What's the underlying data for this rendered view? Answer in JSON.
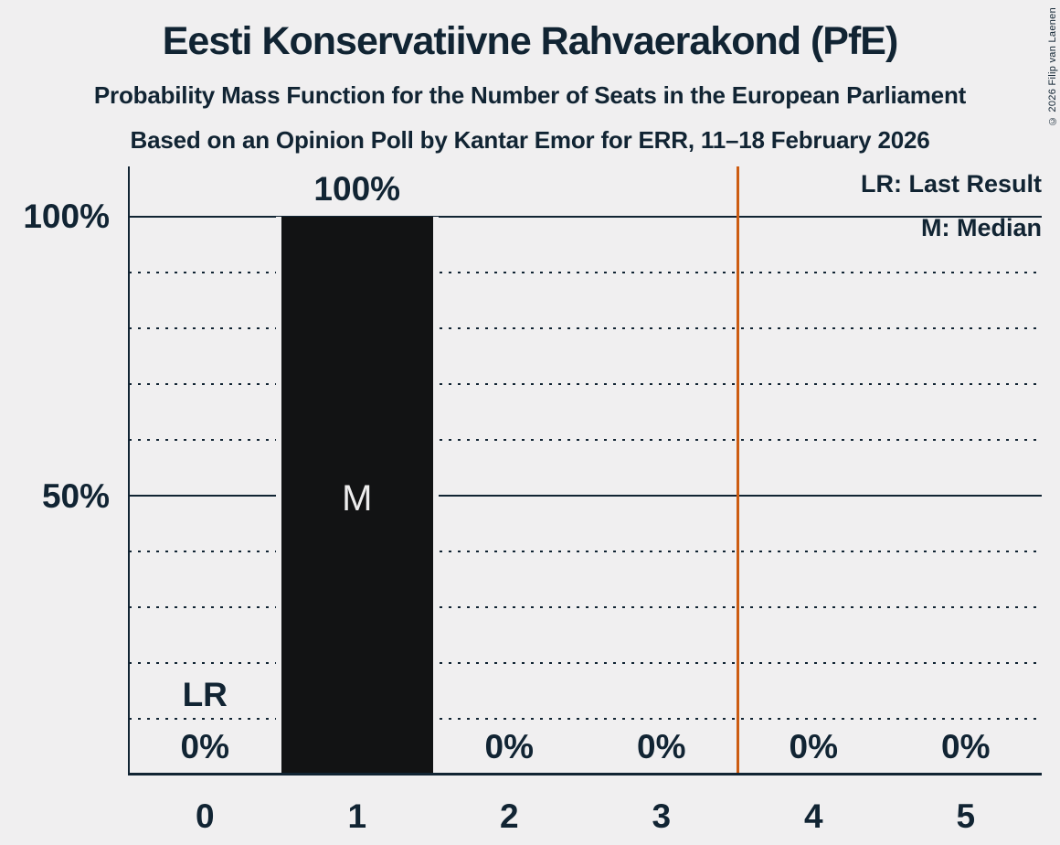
{
  "chart_data": {
    "type": "bar",
    "title": "Eesti Konservatiivne Rahvaerakond (PfE)",
    "subtitle": "Probability Mass Function for the Number of Seats in the European Parliament",
    "source_line": "Based on an Opinion Poll by Kantar Emor for ERR, 11–18 February 2026",
    "copyright": "© 2026 Filip van Laenen",
    "categories": [
      "0",
      "1",
      "2",
      "3",
      "4",
      "5"
    ],
    "values": [
      0,
      100,
      0,
      0,
      0,
      0
    ],
    "value_labels": [
      "0%",
      "100%",
      "0%",
      "0%",
      "0%",
      "0%"
    ],
    "ylim": [
      0,
      100
    ],
    "ytick_labels": [
      "100%",
      "50%"
    ],
    "grid": {
      "solid_percent": [
        100,
        50
      ],
      "dotted_percent": [
        90,
        80,
        70,
        60,
        40,
        30,
        20,
        10
      ]
    },
    "legend": {
      "position": "top-right",
      "items": [
        "LR: Last Result",
        "M: Median"
      ]
    },
    "annotations": {
      "median": {
        "category": "1",
        "label": "M"
      },
      "last_result": {
        "category": "0",
        "label": "LR"
      },
      "reference_line": {
        "x": 3.5
      }
    },
    "colors": {
      "background": "#F0EFF0",
      "ink": "#112433",
      "bar": "#121314",
      "bar_inner_text": "#EDEDED",
      "reference_line": "#CC5C12"
    }
  }
}
